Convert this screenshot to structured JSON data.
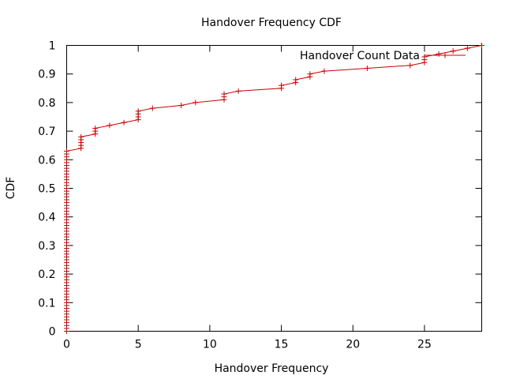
{
  "chart_data": {
    "type": "line",
    "title": "Handover Frequency CDF",
    "xlabel": "Handover Frequency",
    "ylabel": "CDF",
    "xlim": [
      0,
      29
    ],
    "ylim": [
      0,
      1
    ],
    "xticks": [
      0,
      5,
      10,
      15,
      20,
      25
    ],
    "yticks": [
      0,
      0.1,
      0.2,
      0.3,
      0.4,
      0.5,
      0.6,
      0.7,
      0.8,
      0.9,
      1
    ],
    "grid": false,
    "legend_position": "top-right",
    "series": [
      {
        "name": "Handover Count Data",
        "color": "#cc0000",
        "points": [
          [
            0,
            0.0
          ],
          [
            0,
            0.01
          ],
          [
            0,
            0.02
          ],
          [
            0,
            0.03
          ],
          [
            0,
            0.04
          ],
          [
            0,
            0.05
          ],
          [
            0,
            0.06
          ],
          [
            0,
            0.07
          ],
          [
            0,
            0.08
          ],
          [
            0,
            0.09
          ],
          [
            0,
            0.1
          ],
          [
            0,
            0.11
          ],
          [
            0,
            0.12
          ],
          [
            0,
            0.13
          ],
          [
            0,
            0.14
          ],
          [
            0,
            0.15
          ],
          [
            0,
            0.16
          ],
          [
            0,
            0.17
          ],
          [
            0,
            0.18
          ],
          [
            0,
            0.19
          ],
          [
            0,
            0.2
          ],
          [
            0,
            0.21
          ],
          [
            0,
            0.22
          ],
          [
            0,
            0.23
          ],
          [
            0,
            0.24
          ],
          [
            0,
            0.25
          ],
          [
            0,
            0.26
          ],
          [
            0,
            0.27
          ],
          [
            0,
            0.28
          ],
          [
            0,
            0.29
          ],
          [
            0,
            0.3
          ],
          [
            0,
            0.31
          ],
          [
            0,
            0.32
          ],
          [
            0,
            0.33
          ],
          [
            0,
            0.34
          ],
          [
            0,
            0.35
          ],
          [
            0,
            0.36
          ],
          [
            0,
            0.37
          ],
          [
            0,
            0.38
          ],
          [
            0,
            0.39
          ],
          [
            0,
            0.4
          ],
          [
            0,
            0.41
          ],
          [
            0,
            0.42
          ],
          [
            0,
            0.43
          ],
          [
            0,
            0.44
          ],
          [
            0,
            0.45
          ],
          [
            0,
            0.46
          ],
          [
            0,
            0.47
          ],
          [
            0,
            0.48
          ],
          [
            0,
            0.49
          ],
          [
            0,
            0.5
          ],
          [
            0,
            0.51
          ],
          [
            0,
            0.52
          ],
          [
            0,
            0.53
          ],
          [
            0,
            0.54
          ],
          [
            0,
            0.55
          ],
          [
            0,
            0.56
          ],
          [
            0,
            0.57
          ],
          [
            0,
            0.58
          ],
          [
            0,
            0.59
          ],
          [
            0,
            0.6
          ],
          [
            0,
            0.61
          ],
          [
            0,
            0.62
          ],
          [
            0,
            0.63
          ],
          [
            1,
            0.64
          ],
          [
            1,
            0.65
          ],
          [
            1,
            0.66
          ],
          [
            1,
            0.67
          ],
          [
            1,
            0.68
          ],
          [
            2,
            0.69
          ],
          [
            2,
            0.7
          ],
          [
            2,
            0.71
          ],
          [
            3,
            0.72
          ],
          [
            4,
            0.73
          ],
          [
            5,
            0.74
          ],
          [
            5,
            0.75
          ],
          [
            5,
            0.76
          ],
          [
            5,
            0.77
          ],
          [
            6,
            0.78
          ],
          [
            8,
            0.79
          ],
          [
            9,
            0.8
          ],
          [
            11,
            0.81
          ],
          [
            11,
            0.82
          ],
          [
            11,
            0.83
          ],
          [
            12,
            0.84
          ],
          [
            15,
            0.85
          ],
          [
            15,
            0.86
          ],
          [
            16,
            0.87
          ],
          [
            16,
            0.88
          ],
          [
            17,
            0.89
          ],
          [
            17,
            0.9
          ],
          [
            18,
            0.91
          ],
          [
            21,
            0.92
          ],
          [
            24,
            0.93
          ],
          [
            25,
            0.94
          ],
          [
            25,
            0.95
          ],
          [
            25,
            0.96
          ],
          [
            26,
            0.97
          ],
          [
            27,
            0.98
          ],
          [
            28,
            0.99
          ],
          [
            29,
            1.0
          ]
        ]
      }
    ]
  }
}
